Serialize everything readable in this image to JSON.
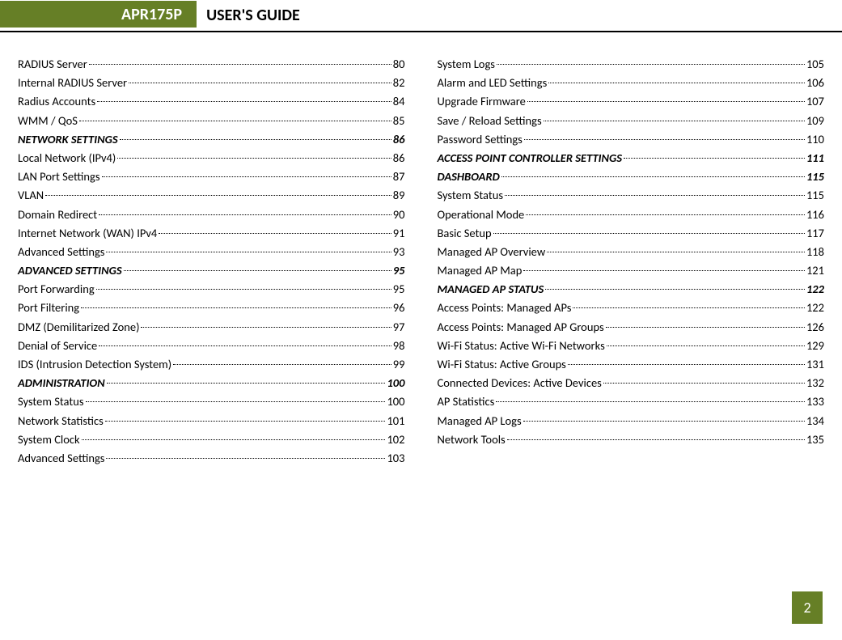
{
  "header": {
    "badge": "APR175P",
    "title": "USER'S GUIDE"
  },
  "colors": {
    "accent": "#667f26",
    "text": "#000000",
    "background": "#ffffff"
  },
  "page_number": "2",
  "left_column": [
    {
      "label": "RADIUS Server",
      "page": "80",
      "heading": false
    },
    {
      "label": "Internal RADIUS Server",
      "page": "82",
      "heading": false
    },
    {
      "label": "Radius Accounts",
      "page": "84",
      "heading": false
    },
    {
      "label": "WMM / QoS",
      "page": "85",
      "heading": false
    },
    {
      "label": "NETWORK SETTINGS",
      "page": "86",
      "heading": true
    },
    {
      "label": "Local Network (IPv4)",
      "page": "86",
      "heading": false
    },
    {
      "label": "LAN Port Settings",
      "page": "87",
      "heading": false
    },
    {
      "label": "VLAN",
      "page": "89",
      "heading": false
    },
    {
      "label": "Domain Redirect",
      "page": "90",
      "heading": false
    },
    {
      "label": "Internet Network (WAN) IPv4",
      "page": "91",
      "heading": false
    },
    {
      "label": "Advanced Settings",
      "page": "93",
      "heading": false
    },
    {
      "label": "ADVANCED SETTINGS",
      "page": "95",
      "heading": true
    },
    {
      "label": "Port Forwarding",
      "page": "95",
      "heading": false
    },
    {
      "label": "Port Filtering",
      "page": "96",
      "heading": false
    },
    {
      "label": "DMZ (Demilitarized Zone)",
      "page": "97",
      "heading": false
    },
    {
      "label": "Denial of Service",
      "page": "98",
      "heading": false
    },
    {
      "label": "IDS (Intrusion Detection System)",
      "page": "99",
      "heading": false
    },
    {
      "label": "ADMINISTRATION",
      "page": "100",
      "heading": true
    },
    {
      "label": "System Status",
      "page": "100",
      "heading": false
    },
    {
      "label": "Network Statistics",
      "page": "101",
      "heading": false
    },
    {
      "label": "System Clock",
      "page": "102",
      "heading": false
    },
    {
      "label": "Advanced Settings",
      "page": "103",
      "heading": false
    }
  ],
  "right_column": [
    {
      "label": "System Logs",
      "page": "105",
      "heading": false
    },
    {
      "label": "Alarm and LED Settings",
      "page": "106",
      "heading": false
    },
    {
      "label": "Upgrade Firmware",
      "page": "107",
      "heading": false
    },
    {
      "label": "Save / Reload Settings",
      "page": "109",
      "heading": false
    },
    {
      "label": "Password Settings",
      "page": "110",
      "heading": false
    },
    {
      "label": "ACCESS POINT CONTROLLER SETTINGS",
      "page": "111",
      "heading": true
    },
    {
      "label": "DASHBOARD",
      "page": "115",
      "heading": true
    },
    {
      "label": "System Status",
      "page": "115",
      "heading": false
    },
    {
      "label": "Operational Mode",
      "page": "116",
      "heading": false
    },
    {
      "label": "Basic Setup",
      "page": "117",
      "heading": false
    },
    {
      "label": "Managed AP Overview",
      "page": "118",
      "heading": false
    },
    {
      "label": "Managed AP Map",
      "page": "121",
      "heading": false
    },
    {
      "label": "MANAGED AP STATUS",
      "page": "122",
      "heading": true
    },
    {
      "label": "Access Points: Managed APs",
      "page": "122",
      "heading": false
    },
    {
      "label": "Access Points: Managed AP Groups",
      "page": "126",
      "heading": false
    },
    {
      "label": "Wi-Fi Status: Active Wi-Fi Networks",
      "page": "129",
      "heading": false
    },
    {
      "label": "Wi-Fi Status: Active Groups",
      "page": "131",
      "heading": false
    },
    {
      "label": "Connected Devices: Active Devices",
      "page": "132",
      "heading": false
    },
    {
      "label": "AP Statistics",
      "page": "133",
      "heading": false
    },
    {
      "label": "Managed AP Logs",
      "page": "134",
      "heading": false
    },
    {
      "label": "Network Tools",
      "page": "135",
      "heading": false
    }
  ]
}
